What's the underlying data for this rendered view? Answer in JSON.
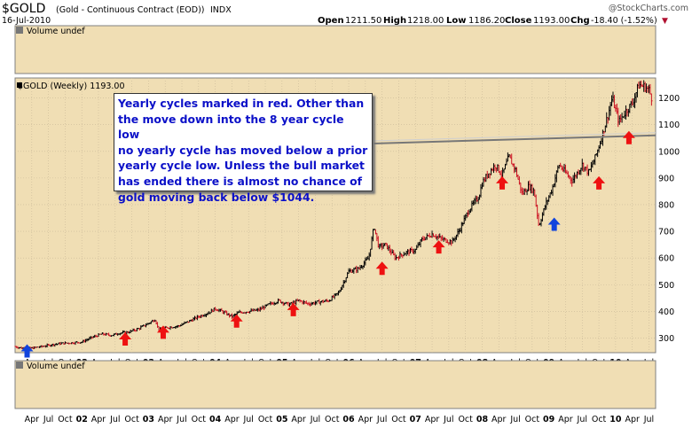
{
  "header": {
    "symbol": "$GOLD",
    "description": "(Gold - Continuous Contract (EOD))",
    "exchange": "INDX",
    "date": "16-Jul-2010",
    "open_label": "Open",
    "open_value": "1211.50",
    "high_label": "High",
    "high_value": "1218.00",
    "low_label": "Low",
    "low_value": "1186.20",
    "close_label": "Close",
    "close_value": "1193.00",
    "chg_label": "Chg",
    "chg_value": "-18.40 (-1.52%)",
    "chg_arrow": "▼",
    "watermark": "@StockCharts.com"
  },
  "panels": {
    "volume_top_label": "Volume undef",
    "price_label": "$GOLD (Weekly) 1193.00",
    "volume_bottom_label": "Volume undef"
  },
  "annotation": {
    "lines": [
      "Yearly cycles marked in red. Other than",
      "the move down into the 8 year cycle low",
      "no yearly cycle has moved below a prior",
      "yearly cycle low. Unless the bull market",
      "has ended there is almost no chance of",
      "gold moving back below $1044."
    ],
    "text_color": "#0b10c8"
  },
  "colors": {
    "panel_bg": "#f0deb4",
    "grid": "#c8b898",
    "up_bar": "#000000",
    "down_bar": "#cc1122",
    "red_arrow": "#ee1111",
    "blue_arrow": "#1144dd",
    "trend_line": "#777777"
  },
  "chart_data": {
    "type": "line",
    "ylim": [
      245,
      1275
    ],
    "y_ticks": [
      "300",
      "400",
      "500",
      "600",
      "700",
      "800",
      "900",
      "1000",
      "1100",
      "1200"
    ],
    "x_tick_labels": [
      "Apr",
      "Jul",
      "Oct",
      "02",
      "Apr",
      "Jul",
      "Oct",
      "03",
      "Apr",
      "Jul",
      "Oct",
      "04",
      "Apr",
      "Jul",
      "Oct",
      "05",
      "Apr",
      "Jul",
      "Oct",
      "06",
      "Apr",
      "Jul",
      "Oct",
      "07",
      "Apr",
      "Jul",
      "Oct",
      "08",
      "Apr",
      "Jul",
      "Oct",
      "09",
      "Apr",
      "Jul",
      "Oct",
      "10",
      "Apr",
      "Jul"
    ],
    "x_tick_bold": [
      false,
      false,
      false,
      true,
      false,
      false,
      false,
      true,
      false,
      false,
      false,
      true,
      false,
      false,
      false,
      true,
      false,
      false,
      false,
      true,
      false,
      false,
      false,
      true,
      false,
      false,
      false,
      true,
      false,
      false,
      false,
      true,
      false,
      false,
      false,
      true,
      false,
      false
    ],
    "x_tick_times": [
      2001.25,
      2001.5,
      2001.75,
      2002,
      2002.25,
      2002.5,
      2002.75,
      2003,
      2003.25,
      2003.5,
      2003.75,
      2004,
      2004.25,
      2004.5,
      2004.75,
      2005,
      2005.25,
      2005.5,
      2005.75,
      2006,
      2006.25,
      2006.5,
      2006.75,
      2007,
      2007.25,
      2007.5,
      2007.75,
      2008,
      2008.25,
      2008.5,
      2008.75,
      2009,
      2009.25,
      2009.5,
      2009.75,
      2010,
      2010.25,
      2010.5
    ],
    "series": [
      {
        "x": [
          2001.0,
          2001.1,
          2001.25,
          2001.4,
          2001.55,
          2001.7,
          2001.85,
          2002.0,
          2002.15,
          2002.3,
          2002.45,
          2002.55,
          2002.7,
          2002.85,
          2003.0,
          2003.1,
          2003.15,
          2003.3,
          2003.45,
          2003.6,
          2003.75,
          2003.9,
          2004.0,
          2004.1,
          2004.25,
          2004.35,
          2004.5,
          2004.65,
          2004.8,
          2004.95,
          2005.1,
          2005.25,
          2005.4,
          2005.55,
          2005.7,
          2005.85,
          2006.0,
          2006.15,
          2006.3,
          2006.38,
          2006.45,
          2006.55,
          2006.7,
          2006.85,
          2007.0,
          2007.1,
          2007.25,
          2007.4,
          2007.55,
          2007.65,
          2007.8,
          2007.95,
          2008.0,
          2008.1,
          2008.2,
          2008.3,
          2008.4,
          2008.5,
          2008.6,
          2008.7,
          2008.78,
          2008.85,
          2008.95,
          2009.05,
          2009.15,
          2009.25,
          2009.35,
          2009.5,
          2009.6,
          2009.7,
          2009.8,
          2009.9,
          2009.95,
          2010.05,
          2010.15,
          2010.25,
          2010.35,
          2010.45,
          2010.5,
          2010.55
        ],
        "values": [
          268,
          262,
          262,
          268,
          275,
          280,
          282,
          285,
          302,
          315,
          310,
          318,
          322,
          335,
          355,
          370,
          330,
          340,
          345,
          362,
          380,
          395,
          410,
          400,
          380,
          395,
          400,
          405,
          425,
          440,
          425,
          440,
          428,
          435,
          440,
          470,
          550,
          560,
          600,
          720,
          640,
          650,
          600,
          620,
          630,
          670,
          690,
          670,
          660,
          700,
          780,
          830,
          880,
          920,
          950,
          910,
          980,
          930,
          840,
          870,
          850,
          720,
          800,
          860,
          950,
          920,
          890,
          950,
          920,
          980,
          1060,
          1150,
          1200,
          1110,
          1150,
          1180,
          1250,
          1240,
          1230,
          1193
        ]
      }
    ],
    "trend_line": {
      "x": [
        2006.38,
        2010.6
      ],
      "values": [
        1000,
        1060
      ]
    },
    "markers": [
      {
        "time": 2001.18,
        "price": 250,
        "color": "blue"
      },
      {
        "time": 2002.65,
        "price": 295,
        "color": "red"
      },
      {
        "time": 2003.22,
        "price": 320,
        "color": "red"
      },
      {
        "time": 2004.32,
        "price": 362,
        "color": "red"
      },
      {
        "time": 2005.17,
        "price": 405,
        "color": "red"
      },
      {
        "time": 2006.5,
        "price": 560,
        "color": "red"
      },
      {
        "time": 2007.35,
        "price": 640,
        "color": "red"
      },
      {
        "time": 2008.3,
        "price": 880,
        "color": "red"
      },
      {
        "time": 2009.08,
        "price": 725,
        "color": "blue"
      },
      {
        "time": 2009.75,
        "price": 880,
        "color": "red"
      },
      {
        "time": 2010.2,
        "price": 1050,
        "color": "red"
      }
    ]
  }
}
